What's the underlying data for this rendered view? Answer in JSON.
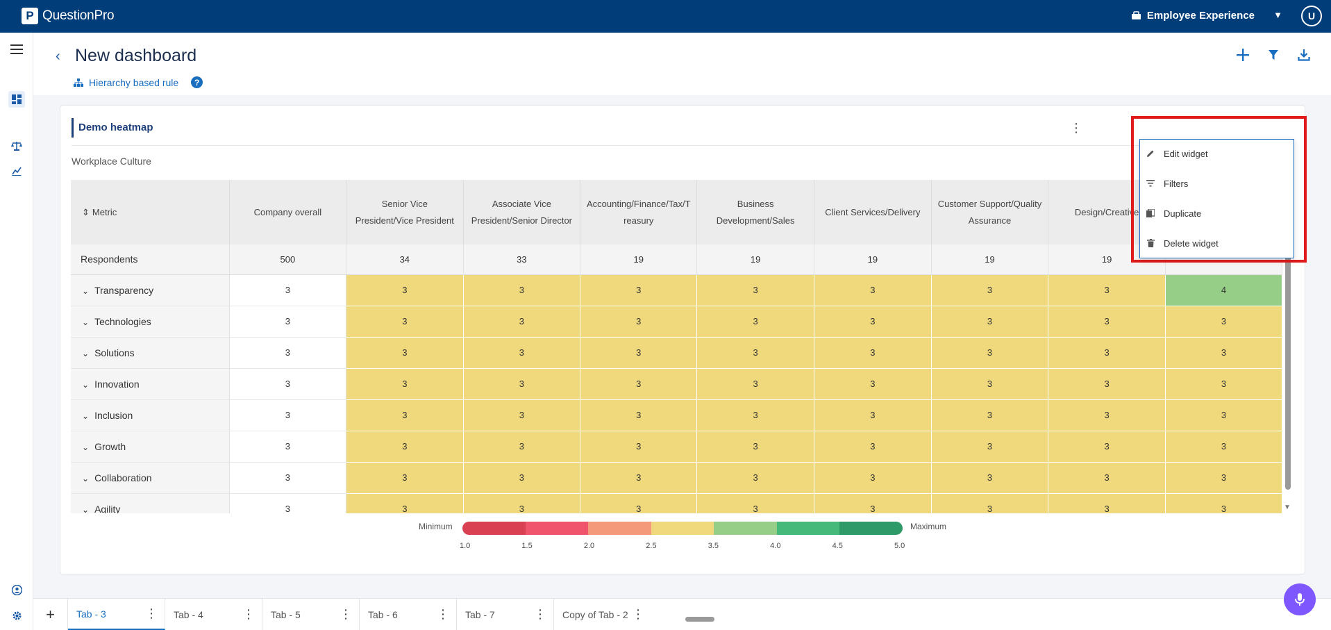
{
  "topbar": {
    "logo_mark": "P",
    "logo_text": "QuestionPro",
    "product": "Employee Experience",
    "avatar": "U"
  },
  "header": {
    "title": "New dashboard",
    "hierarchy_rule": "Hierarchy based rule",
    "help": "?"
  },
  "widget": {
    "title": "Demo heatmap",
    "subtitle": "Workplace Culture",
    "menu": {
      "edit": "Edit widget",
      "filters": "Filters",
      "duplicate": "Duplicate",
      "delete": "Delete widget"
    },
    "table": {
      "columns": [
        "Metric",
        "Company overall",
        "Senior Vice President/Vice President",
        "Associate Vice President/Senior Director",
        "Accounting/Finance/Tax/Treasury",
        "Business Development/Sales",
        "Client Services/Delivery",
        "Customer Support/Quality Assurance",
        "Design/Creative",
        ""
      ],
      "respondents": [
        "Respondents",
        "500",
        "34",
        "33",
        "19",
        "19",
        "19",
        "19",
        "19",
        ""
      ],
      "rows": [
        {
          "label": "Transparency",
          "values": [
            "3",
            "3",
            "3",
            "3",
            "3",
            "3",
            "3",
            "3",
            "4"
          ]
        },
        {
          "label": "Technologies",
          "values": [
            "3",
            "3",
            "3",
            "3",
            "3",
            "3",
            "3",
            "3",
            "3"
          ]
        },
        {
          "label": "Solutions",
          "values": [
            "3",
            "3",
            "3",
            "3",
            "3",
            "3",
            "3",
            "3",
            "3"
          ]
        },
        {
          "label": "Innovation",
          "values": [
            "3",
            "3",
            "3",
            "3",
            "3",
            "3",
            "3",
            "3",
            "3"
          ]
        },
        {
          "label": "Inclusion",
          "values": [
            "3",
            "3",
            "3",
            "3",
            "3",
            "3",
            "3",
            "3",
            "3"
          ]
        },
        {
          "label": "Growth",
          "values": [
            "3",
            "3",
            "3",
            "3",
            "3",
            "3",
            "3",
            "3",
            "3"
          ]
        },
        {
          "label": "Collaboration",
          "values": [
            "3",
            "3",
            "3",
            "3",
            "3",
            "3",
            "3",
            "3",
            "3"
          ]
        },
        {
          "label": "Agility",
          "values": [
            "3",
            "3",
            "3",
            "3",
            "3",
            "3",
            "3",
            "3",
            "3"
          ]
        }
      ]
    },
    "legend": {
      "min_label": "Minimum",
      "max_label": "Maximum",
      "ticks": [
        "1.0",
        "1.5",
        "2.0",
        "2.5",
        "3.5",
        "4.0",
        "4.5",
        "5.0"
      ],
      "colors": [
        "#d94052",
        "#f0546c",
        "#f49a7a",
        "#f0d97c",
        "#96ce88",
        "#44b97a",
        "#2e9a68"
      ]
    }
  },
  "tabs": [
    {
      "label": "Tab - 3",
      "active": true
    },
    {
      "label": "Tab - 4"
    },
    {
      "label": "Tab - 5"
    },
    {
      "label": "Tab - 6"
    },
    {
      "label": "Tab - 7"
    },
    {
      "label": "Copy of Tab - 2"
    }
  ],
  "colors": {
    "brand": "#003d79",
    "accent": "#1a6ec0",
    "highlight": "#e01b1b",
    "mic": "#7e57ff"
  }
}
